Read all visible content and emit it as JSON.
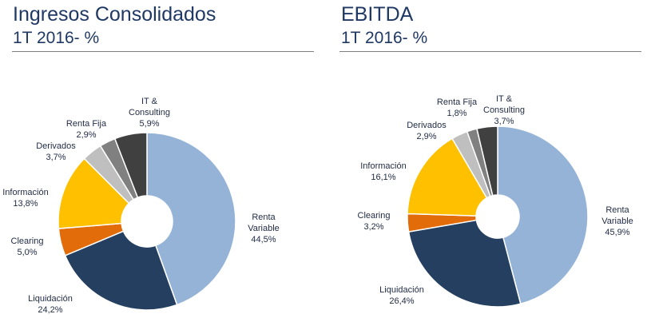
{
  "colors": {
    "renta_variable": "#95b3d7",
    "liquidacion": "#243f60",
    "clearing": "#e36c0a",
    "informacion": "#ffc000",
    "derivados": "#bfbfbf",
    "renta_fija": "#808080",
    "it_consulting": "#404040"
  },
  "chart_data": [
    {
      "type": "pie",
      "title": "Ingresos Consolidados",
      "subtitle": "1T 2016- %",
      "donut": true,
      "slices": [
        {
          "label_lines": [
            "Renta",
            "Variable"
          ],
          "value_label": "44,5%",
          "value": 44.5,
          "color": "#95b3d7"
        },
        {
          "label_lines": [
            "Liquidación"
          ],
          "value_label": "24,2%",
          "value": 24.2,
          "color": "#243f60"
        },
        {
          "label_lines": [
            "Clearing"
          ],
          "value_label": "5,0%",
          "value": 5.0,
          "color": "#e36c0a"
        },
        {
          "label_lines": [
            "Información"
          ],
          "value_label": "13,8%",
          "value": 13.8,
          "color": "#ffc000"
        },
        {
          "label_lines": [
            "Derivados"
          ],
          "value_label": "3,7%",
          "value": 3.7,
          "color": "#bfbfbf"
        },
        {
          "label_lines": [
            "Renta Fija"
          ],
          "value_label": "2,9%",
          "value": 2.9,
          "color": "#808080"
        },
        {
          "label_lines": [
            "IT &",
            "Consulting"
          ],
          "value_label": "5,9%",
          "value": 5.9,
          "color": "#404040"
        }
      ]
    },
    {
      "type": "pie",
      "title": "EBITDA",
      "subtitle": "1T 2016- %",
      "donut": true,
      "slices": [
        {
          "label_lines": [
            "Renta",
            "Variable"
          ],
          "value_label": "45,9%",
          "value": 45.9,
          "color": "#95b3d7"
        },
        {
          "label_lines": [
            "Liquidación"
          ],
          "value_label": "26,4%",
          "value": 26.4,
          "color": "#243f60"
        },
        {
          "label_lines": [
            "Clearing"
          ],
          "value_label": "3,2%",
          "value": 3.2,
          "color": "#e36c0a"
        },
        {
          "label_lines": [
            "Información"
          ],
          "value_label": "16,1%",
          "value": 16.1,
          "color": "#ffc000"
        },
        {
          "label_lines": [
            "Derivados"
          ],
          "value_label": "2,9%",
          "value": 2.9,
          "color": "#bfbfbf"
        },
        {
          "label_lines": [
            "Renta Fija"
          ],
          "value_label": "1,8%",
          "value": 1.8,
          "color": "#808080"
        },
        {
          "label_lines": [
            "IT &",
            "Consulting"
          ],
          "value_label": "3,7%",
          "value": 3.7,
          "color": "#404040"
        }
      ]
    }
  ]
}
